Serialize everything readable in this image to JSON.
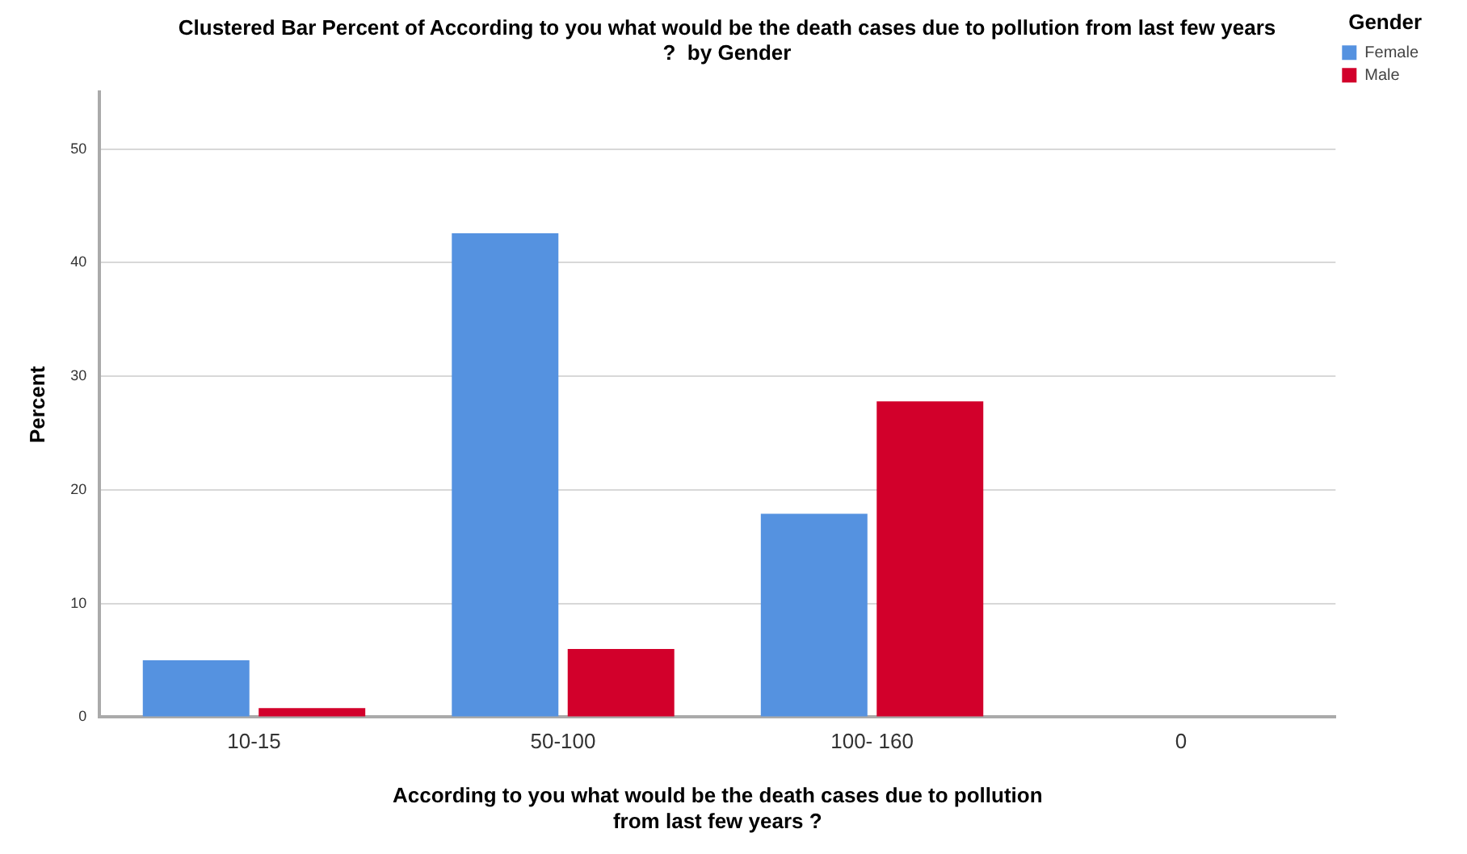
{
  "chart_data": {
    "type": "bar",
    "title": [
      "Clustered Bar Percent of According to you what would be the death cases due to pollution from last few years",
      "?  by Gender"
    ],
    "xlabel": [
      "According to you what would be the death cases due to pollution",
      "from last few years ?"
    ],
    "ylabel": "Percent",
    "legend_title": "Gender",
    "categories": [
      "10-15",
      "50-100",
      "100- 160",
      "0"
    ],
    "series": [
      {
        "name": "Female",
        "color": "#5592e0",
        "values": [
          5.0,
          42.6,
          17.9,
          0
        ]
      },
      {
        "name": "Male",
        "color": "#d2002b",
        "values": [
          0.8,
          6.0,
          27.8,
          0
        ]
      }
    ],
    "ylim": [
      0,
      55
    ],
    "yticks": [
      0,
      10,
      20,
      30,
      40,
      50
    ],
    "grid": "y",
    "legend": "top right"
  }
}
